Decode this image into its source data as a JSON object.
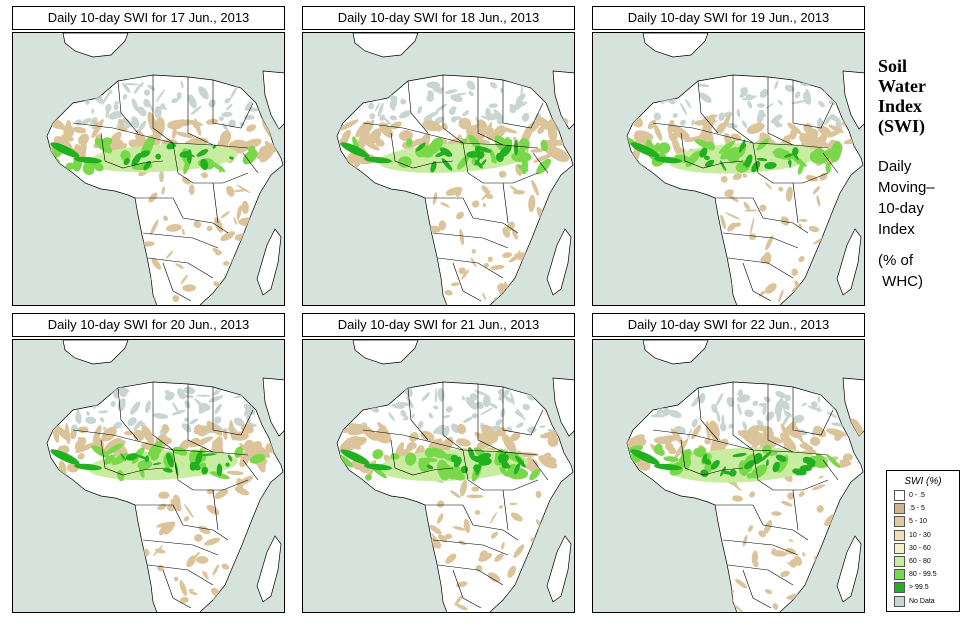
{
  "panels": [
    {
      "title": "Daily 10-day SWI for  17 Jun., 2013",
      "wet_level": 0.55
    },
    {
      "title": "Daily 10-day SWI for  18 Jun., 2013",
      "wet_level": 0.6
    },
    {
      "title": "Daily 10-day SWI for  19 Jun., 2013",
      "wet_level": 0.65
    },
    {
      "title": "Daily 10-day SWI for  20 Jun., 2013",
      "wet_level": 0.62
    },
    {
      "title": "Daily 10-day SWI for  21 Jun., 2013",
      "wet_level": 0.68
    },
    {
      "title": "Daily 10-day SWI for  22 Jun., 2013",
      "wet_level": 0.8
    }
  ],
  "side": {
    "heading": [
      "Soil",
      "Water",
      "Index",
      "(SWI)"
    ],
    "sub": [
      "Daily",
      "Moving–",
      "10-day",
      "Index",
      "",
      "(% of",
      " WHC)"
    ]
  },
  "legend": {
    "title": "SWI (%)",
    "items": [
      {
        "label": "0 - .5",
        "color": "#ffffff"
      },
      {
        "label": ".5 - 5",
        "color": "#d2b48c"
      },
      {
        "label": "5 - 10",
        "color": "#e3c9a3"
      },
      {
        "label": "10 - 30",
        "color": "#f0deb8"
      },
      {
        "label": "30 - 60",
        "color": "#f6f0c6"
      },
      {
        "label": "60 - 80",
        "color": "#c8eda0"
      },
      {
        "label": "80 - 99.5",
        "color": "#78d84a"
      },
      {
        "label": "> 99.5",
        "color": "#20b020"
      },
      {
        "label": "No Data",
        "color": "#c8d5d0"
      }
    ]
  },
  "colors": {
    "ocean": "#d6e3dc",
    "land": "#ffffff",
    "nodata": "#c8d5d0",
    "dry_tan": "#dcc49a",
    "light_green": "#c8eda0",
    "mid_green": "#78d84a",
    "dark_green": "#20b020",
    "border": "#000000"
  }
}
